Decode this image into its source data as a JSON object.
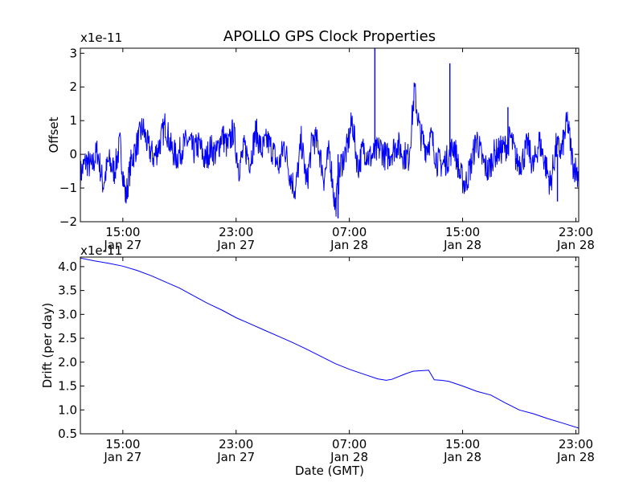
{
  "figure_title": "APOLLO GPS Clock Properties",
  "chart_data": [
    {
      "type": "line",
      "name": "offset",
      "ylabel": "Offset",
      "xlabel": "",
      "scale_label": "x1e-11",
      "x_units": "hours since Jan 27 12:00 GMT",
      "xlim": [
        0,
        35.2
      ],
      "ylim": [
        -2,
        3.15
      ],
      "yticks": [
        -2,
        -1,
        0,
        1,
        2,
        3
      ],
      "ytick_labels": [
        "−2",
        "−1",
        "0",
        "1",
        "2",
        "3"
      ],
      "xticks": [
        3,
        11,
        19,
        27,
        35
      ],
      "xtick_labels": [
        [
          "15:00",
          "Jan 27"
        ],
        [
          "23:00",
          "Jan 27"
        ],
        [
          "07:00",
          "Jan 28"
        ],
        [
          "15:00",
          "Jan 28"
        ],
        [
          "23:00",
          "Jan 28"
        ]
      ],
      "color": "#0000ff",
      "series": [
        {
          "name": "Offset",
          "x": [
            0,
            0.4,
            0.8,
            1.2,
            1.6,
            2,
            2.4,
            2.8,
            3.2,
            3.6,
            4,
            4.4,
            4.8,
            5.2,
            5.6,
            6,
            6.4,
            6.8,
            7.2,
            7.6,
            8,
            8.4,
            8.8,
            9.2,
            9.6,
            10,
            10.4,
            10.8,
            11.2,
            11.6,
            12,
            12.4,
            12.8,
            13.2,
            13.6,
            14,
            14.4,
            14.8,
            15.2,
            15.6,
            16,
            16.4,
            16.8,
            17.2,
            17.6,
            18,
            18.4,
            18.8,
            19.2,
            19.6,
            20,
            20.4,
            20.8,
            21.2,
            21.6,
            22,
            22.4,
            22.8,
            23.2,
            23.6,
            24,
            24.4,
            24.8,
            25.2,
            25.6,
            26,
            26.4,
            26.8,
            27.2,
            27.6,
            28,
            28.4,
            28.8,
            29.2,
            29.6,
            30,
            30.4,
            30.8,
            31.2,
            31.6,
            32,
            32.4,
            32.8,
            33.2,
            33.6,
            34,
            34.4,
            34.8,
            35.2
          ],
          "y": [
            -0.6,
            -0.2,
            -0.4,
            0.1,
            -0.9,
            -0.2,
            -0.5,
            0.3,
            -1.3,
            -0.2,
            0.3,
            0.8,
            0.2,
            -0.1,
            0.3,
            0.9,
            0.2,
            -0.1,
            0.2,
            0.4,
            0.1,
            0.3,
            -0.2,
            0.2,
            0,
            0.6,
            0.2,
            0.7,
            -0.4,
            0.2,
            -0.2,
            0.7,
            0.1,
            0.4,
            0.1,
            -0.4,
            0.3,
            -0.6,
            -1.1,
            0.4,
            -0.9,
            0.5,
            0.3,
            -0.7,
            0.1,
            -1.6,
            -0.3,
            0.1,
            1.0,
            -0.4,
            0.2,
            -0.1,
            0,
            0.2,
            -0.1,
            0.1,
            0.3,
            0,
            -0.1,
            1.9,
            0.6,
            0.2,
            0.5,
            -0.2,
            -0.3,
            -0.1,
            0.3,
            -0.6,
            -0.9,
            -0.3,
            0.5,
            -0.2,
            -0.5,
            0,
            0.1,
            0.2,
            0.5,
            -0.2,
            -0.2,
            0.3,
            -0.4,
            0.4,
            -0.2,
            -0.9,
            0.2,
            0.1,
            1.0,
            -0.3,
            -0.6
          ],
          "events": [
            {
              "x": 18.2,
              "y": -1.9
            },
            {
              "x": 20.8,
              "y": 3.15
            },
            {
              "x": 26.1,
              "y": 2.7
            },
            {
              "x": 30.2,
              "y": 1.4
            },
            {
              "x": 33.7,
              "y": -1.4
            }
          ]
        }
      ]
    },
    {
      "type": "line",
      "name": "drift",
      "ylabel": "Drift (per day)",
      "xlabel": "Date (GMT)",
      "scale_label": "x1e-11",
      "x_units": "hours since Jan 27 12:00 GMT",
      "xlim": [
        0,
        35.2
      ],
      "ylim": [
        0.5,
        4.2
      ],
      "yticks": [
        0.5,
        1.0,
        1.5,
        2.0,
        2.5,
        3.0,
        3.5,
        4.0
      ],
      "ytick_labels": [
        "0.5",
        "1.0",
        "1.5",
        "2.0",
        "2.5",
        "3.0",
        "3.5",
        "4.0"
      ],
      "xticks": [
        3,
        11,
        19,
        27,
        35
      ],
      "xtick_labels": [
        [
          "15:00",
          "Jan 27"
        ],
        [
          "23:00",
          "Jan 27"
        ],
        [
          "07:00",
          "Jan 28"
        ],
        [
          "15:00",
          "Jan 28"
        ],
        [
          "23:00",
          "Jan 28"
        ]
      ],
      "color": "#0000ff",
      "series": [
        {
          "name": "Drift",
          "x": [
            0,
            1,
            2,
            3,
            4,
            5,
            6,
            7,
            8,
            9,
            10,
            11,
            12,
            13,
            14,
            15,
            16,
            17,
            18,
            19,
            20,
            21,
            21.6,
            22,
            23,
            23.5,
            24,
            24.6,
            25,
            25.5,
            26,
            27,
            28,
            29,
            30,
            31,
            32,
            33,
            34,
            35.2
          ],
          "y": [
            4.18,
            4.12,
            4.07,
            4.01,
            3.92,
            3.81,
            3.68,
            3.55,
            3.39,
            3.23,
            3.09,
            2.93,
            2.8,
            2.67,
            2.54,
            2.41,
            2.27,
            2.12,
            1.97,
            1.85,
            1.75,
            1.65,
            1.62,
            1.64,
            1.76,
            1.81,
            1.82,
            1.83,
            1.63,
            1.62,
            1.6,
            1.5,
            1.39,
            1.31,
            1.15,
            1.0,
            0.92,
            0.82,
            0.73,
            0.62
          ]
        }
      ]
    }
  ]
}
